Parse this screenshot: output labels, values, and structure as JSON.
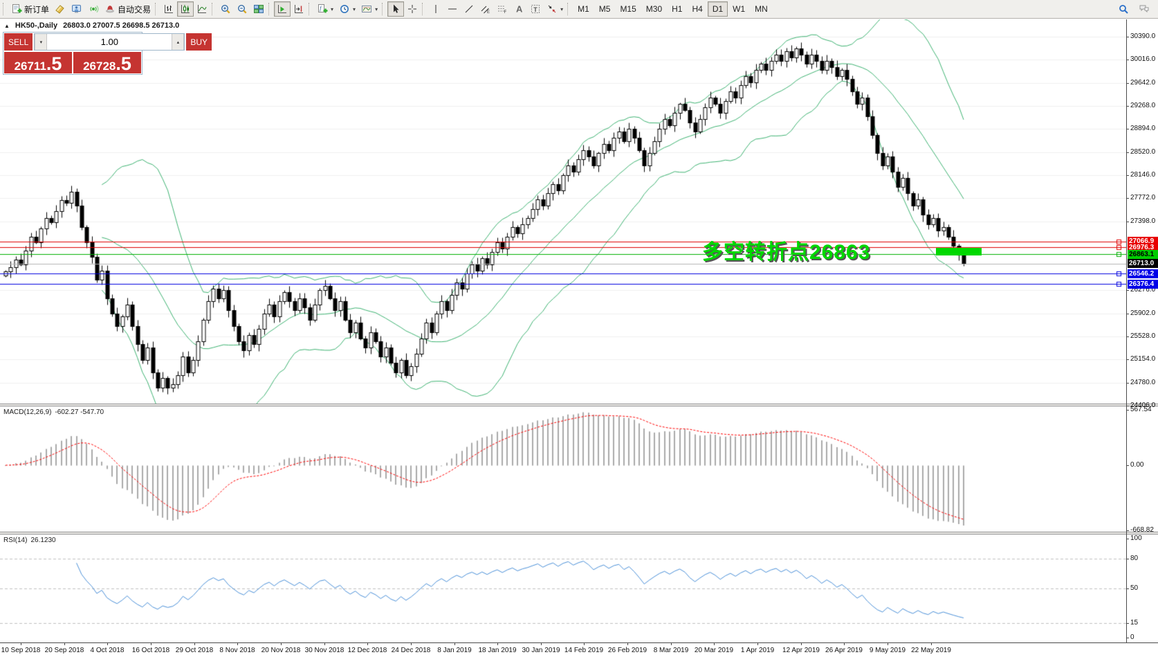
{
  "toolbar": {
    "dropdown_glyph": "▾",
    "groups": [
      {
        "items": [
          {
            "name": "new-order",
            "label": "新订单"
          },
          {
            "name": "eraser"
          },
          {
            "name": "profile"
          },
          {
            "name": "signal"
          },
          {
            "name": "autotrading",
            "label": "自动交易"
          }
        ]
      },
      {
        "items": [
          {
            "name": "bar-chart"
          },
          {
            "name": "candlestick-chart",
            "active": true
          },
          {
            "name": "line-chart"
          }
        ]
      },
      {
        "items": [
          {
            "name": "zoom-in"
          },
          {
            "name": "zoom-out"
          },
          {
            "name": "tile-windows"
          }
        ]
      },
      {
        "items": [
          {
            "name": "auto-scroll",
            "active": true
          },
          {
            "name": "chart-shift"
          }
        ]
      },
      {
        "items": [
          {
            "name": "indicators",
            "dropdown": true
          },
          {
            "name": "periods",
            "dropdown": true
          },
          {
            "name": "templates",
            "dropdown": true
          }
        ]
      },
      {
        "items": [
          {
            "name": "cursor",
            "active": true
          },
          {
            "name": "crosshair"
          }
        ]
      },
      {
        "items": [
          {
            "name": "vertical-line"
          },
          {
            "name": "horizontal-line"
          },
          {
            "name": "trend-line"
          },
          {
            "name": "equidistant-channel"
          },
          {
            "name": "fibonacci"
          },
          {
            "name": "text"
          },
          {
            "name": "text-label"
          },
          {
            "name": "arrows",
            "dropdown": true
          }
        ]
      },
      {
        "items": [
          {
            "name": "tf-m1",
            "label": "M1"
          },
          {
            "name": "tf-m5",
            "label": "M5"
          },
          {
            "name": "tf-m15",
            "label": "M15"
          },
          {
            "name": "tf-m30",
            "label": "M30"
          },
          {
            "name": "tf-h1",
            "label": "H1"
          },
          {
            "name": "tf-h4",
            "label": "H4"
          },
          {
            "name": "tf-d1",
            "label": "D1",
            "active": true
          },
          {
            "name": "tf-w1",
            "label": "W1"
          },
          {
            "name": "tf-mn",
            "label": "MN"
          }
        ]
      }
    ],
    "right": [
      {
        "name": "search"
      },
      {
        "name": "chat"
      }
    ]
  },
  "trade_panel": {
    "sell_label": "SELL",
    "buy_label": "BUY",
    "volume": "1.00",
    "vol_down_glyph": "▾",
    "vol_up_glyph": "▴",
    "sell_price_int": "26711",
    "sell_price_dec": ".5",
    "buy_price_int": "26728",
    "buy_price_dec": ".5"
  },
  "chart_title": {
    "collapse_glyph": "▲",
    "symbol": "HK50-,Daily",
    "ohlc": "26803.0 27007.5 26698.5 26713.0"
  },
  "chart_data": {
    "type": "candlestick",
    "symbol": "HK50-",
    "timeframe": "Daily",
    "open": "26803.0",
    "high": "27007.5",
    "low": "26698.5",
    "close": "26713.0",
    "ylim": [
      24406,
      30390
    ],
    "price_ticks": [
      "30390.0",
      "30016.0",
      "29642.0",
      "29268.0",
      "28894.0",
      "28520.0",
      "28146.0",
      "27772.0",
      "27398.0",
      "26276.0",
      "25902.0",
      "25528.0",
      "25154.0",
      "24780.0",
      "24406.0"
    ],
    "x_labels": [
      "10 Sep 2018",
      "20 Sep 2018",
      "4 Oct 2018",
      "16 Oct 2018",
      "29 Oct 2018",
      "8 Nov 2018",
      "20 Nov 2018",
      "30 Nov 2018",
      "12 Dec 2018",
      "24 Dec 2018",
      "8 Jan 2019",
      "18 Jan 2019",
      "30 Jan 2019",
      "14 Feb 2019",
      "26 Feb 2019",
      "8 Mar 2019",
      "20 Mar 2019",
      "1 Apr 2019",
      "12 Apr 2019",
      "26 Apr 2019",
      "9 May 2019",
      "22 May 2019"
    ],
    "closes": [
      26580,
      26650,
      26780,
      26700,
      26920,
      27150,
      27060,
      27280,
      27450,
      27380,
      27560,
      27740,
      27690,
      27880,
      27650,
      27300,
      27050,
      26820,
      26450,
      26600,
      26150,
      25900,
      25700,
      25850,
      26050,
      25700,
      25400,
      25150,
      25350,
      24950,
      24700,
      24850,
      24700,
      24750,
      24900,
      25200,
      24950,
      25150,
      25450,
      25800,
      26100,
      26300,
      26150,
      26280,
      25950,
      25700,
      25450,
      25300,
      25550,
      25400,
      25650,
      25900,
      26050,
      25850,
      26100,
      26250,
      26100,
      25950,
      26150,
      26000,
      25800,
      26050,
      26280,
      26350,
      26150,
      25950,
      26100,
      25800,
      25600,
      25750,
      25500,
      25350,
      25600,
      25450,
      25200,
      25350,
      25100,
      24950,
      25150,
      24900,
      25050,
      25250,
      25500,
      25750,
      25600,
      25900,
      26100,
      25950,
      26200,
      26400,
      26300,
      26550,
      26700,
      26600,
      26800,
      26700,
      26900,
      27050,
      26950,
      27150,
      27300,
      27200,
      27350,
      27450,
      27600,
      27750,
      27650,
      27850,
      28000,
      27900,
      28150,
      28300,
      28200,
      28400,
      28550,
      28450,
      28300,
      28500,
      28650,
      28550,
      28750,
      28850,
      28700,
      28900,
      28750,
      28550,
      28300,
      28500,
      28700,
      28900,
      29050,
      28950,
      29150,
      29300,
      29200,
      29000,
      28850,
      29050,
      29250,
      29400,
      29300,
      29150,
      29350,
      29500,
      29400,
      29600,
      29750,
      29650,
      29850,
      29950,
      29850,
      30000,
      30100,
      30000,
      30150,
      30050,
      30200,
      30100,
      29950,
      30100,
      30000,
      29850,
      30000,
      29900,
      29750,
      29850,
      29700,
      29500,
      29300,
      29400,
      29100,
      28800,
      28500,
      28300,
      28450,
      28200,
      27950,
      28100,
      27850,
      27650,
      27750,
      27500,
      27350,
      27450,
      27250,
      27300,
      27150,
      27000,
      26850,
      26713
    ],
    "candle_colors": {
      "up_fill": "#ffffff",
      "down_fill": "#000000",
      "outline": "#000000"
    },
    "levels": [
      {
        "value": 27066.9,
        "label": "27066.9",
        "line": "#e00000",
        "bg": "#e80000",
        "fg": "#ffffff"
      },
      {
        "value": 26976.3,
        "label": "26976.3",
        "line": "#e00000",
        "bg": "#e80000",
        "fg": "#ffffff"
      },
      {
        "value": 26863.1,
        "label": "26863.1",
        "line": "#00b000",
        "bg": "#00cc00",
        "fg": "#000000"
      },
      {
        "value": 26713.0,
        "label": "26713.0",
        "line": "#b4b4b4",
        "bg": "#000000",
        "fg": "#ffffff",
        "current": true
      },
      {
        "value": 26546.2,
        "label": "26546.2",
        "line": "#0000e0",
        "bg": "#0000e8",
        "fg": "#ffffff"
      },
      {
        "value": 26376.4,
        "label": "26376.4",
        "line": "#0000e0",
        "bg": "#0000e8",
        "fg": "#ffffff"
      }
    ],
    "annotation": {
      "text": "多空转折点26863",
      "color": "#00d800"
    },
    "highlight": {
      "price": 26863.1,
      "color": "#00d800"
    },
    "indicators": {
      "bollinger": {
        "period": 20,
        "deviation": 2,
        "color": "#3cb371"
      },
      "macd": {
        "label": "MACD(12,26,9)",
        "current": "-602.27 -547.70",
        "ticks": [
          "567.54",
          "0.00",
          "-668.82"
        ],
        "ylim": [
          -668.82,
          567.54
        ],
        "histogram_color": "#a9a9a9",
        "signal_color": "#ff0000"
      },
      "rsi": {
        "label": "RSI(14)",
        "current": "26.1230",
        "ticks": [
          "100",
          "80",
          "50",
          "15",
          "0"
        ],
        "levels": [
          80,
          50,
          15
        ],
        "color": "#4a90d9"
      }
    }
  }
}
